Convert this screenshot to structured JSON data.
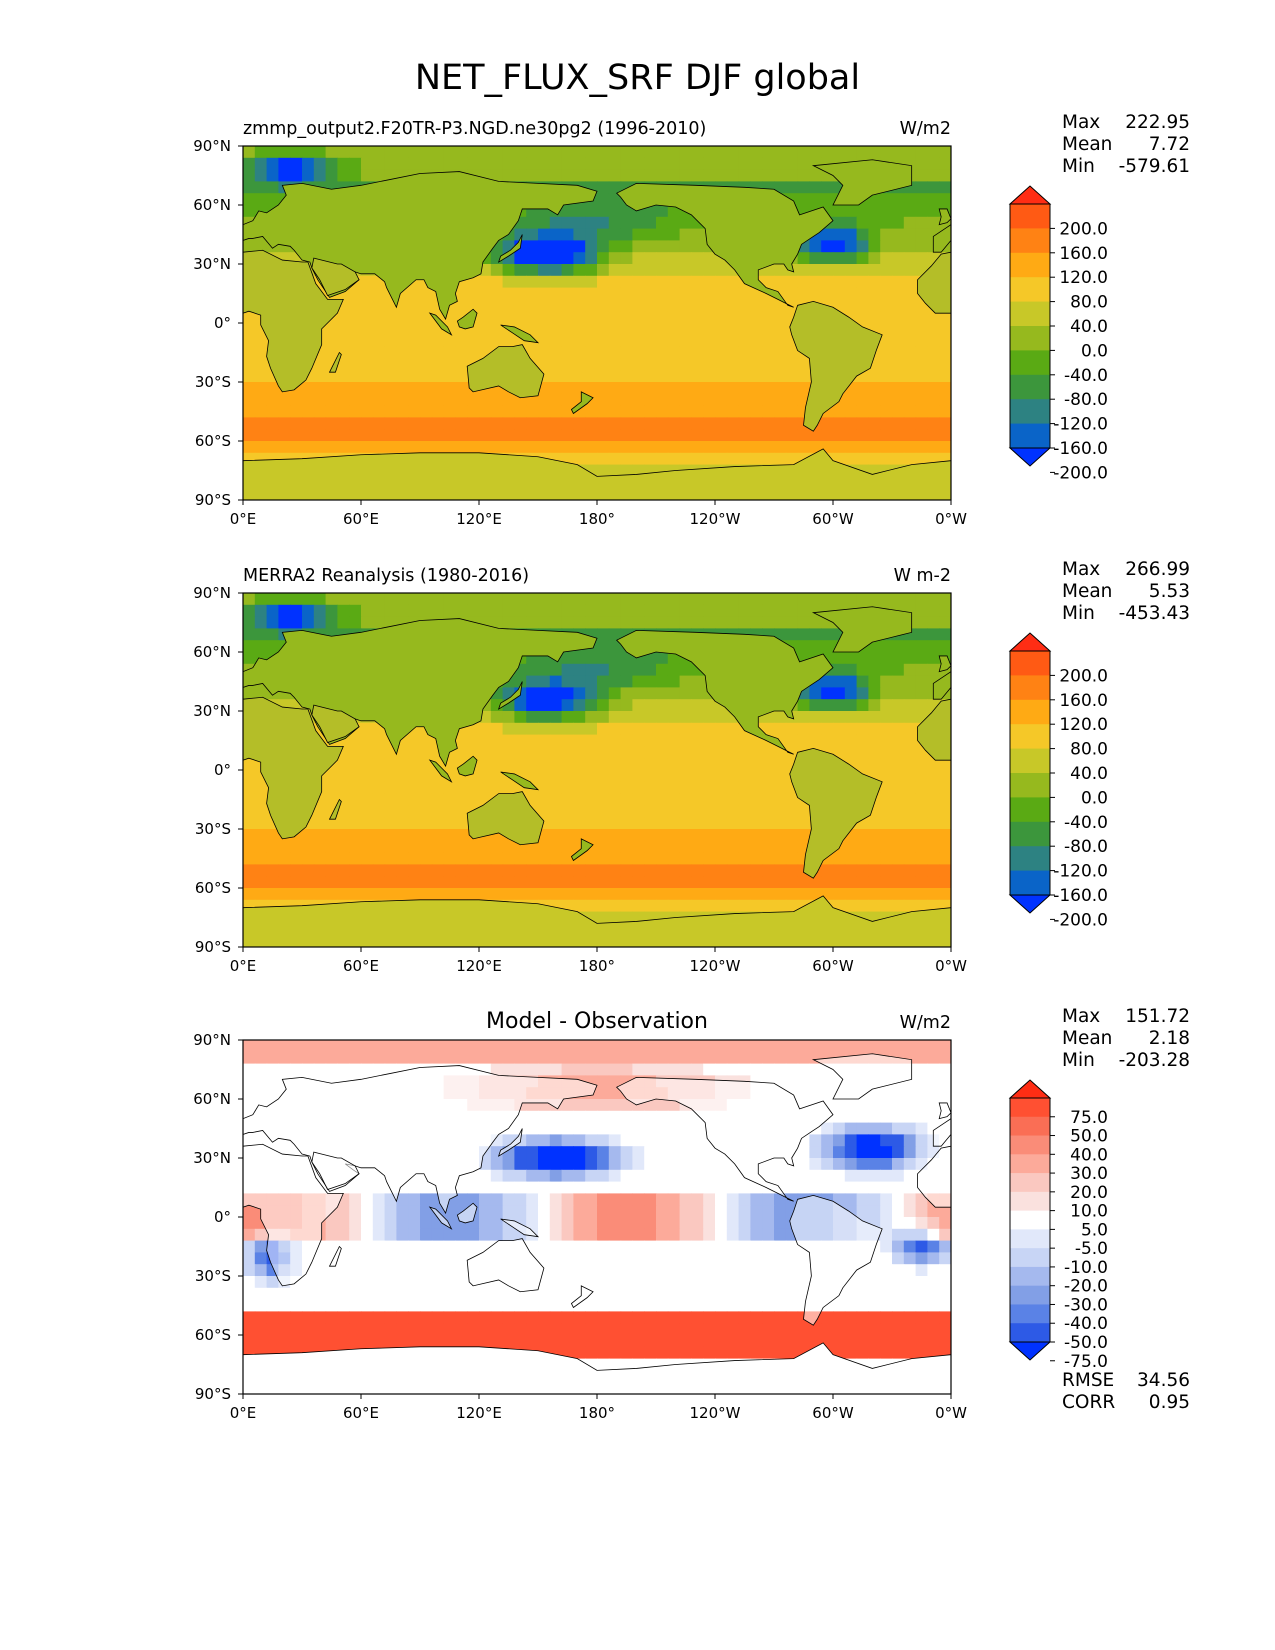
{
  "title": "NET_FLUX_SRF DJF global",
  "colors": {
    "model_levels": [
      "#0032ff",
      "#0a64c8",
      "#2d8282",
      "#3c963c",
      "#5aaa14",
      "#96b91e",
      "#c8c828",
      "#f5c828",
      "#ffaa14",
      "#ff8214",
      "#ff5a14",
      "#ff2d14"
    ],
    "diff_levels": [
      "#0032ff",
      "#2d5ae6",
      "#5a82e6",
      "#829fe6",
      "#a5b9ee",
      "#c8d5f5",
      "#e1e8fa",
      "#ffffff",
      "#fae1de",
      "#fac8c0",
      "#fcaa9a",
      "#fa8c78",
      "#fa6e55",
      "#ff5032",
      "#ff2d14"
    ]
  },
  "panels": [
    {
      "id": "test",
      "left_title": "zmmp_output2.F20TR-P3.NGD.ne30pg2 (1996-2010)",
      "center_title": "",
      "units": "W/m2",
      "stats": [
        {
          "label": "Max",
          "value": "222.95"
        },
        {
          "label": "Mean",
          "value": "7.72"
        },
        {
          "label": "Min",
          "value": "-579.61"
        }
      ],
      "colorbar_ticks": [
        "200.0",
        "160.0",
        "120.0",
        "80.0",
        "40.0",
        "0.0",
        "-40.0",
        "-80.0",
        "-120.0",
        "-160.0",
        "-200.0"
      ],
      "extra_stats": []
    },
    {
      "id": "reference",
      "left_title": "MERRA2 Reanalysis (1980-2016)",
      "center_title": "",
      "units": "W m-2",
      "stats": [
        {
          "label": "Max",
          "value": "266.99"
        },
        {
          "label": "Mean",
          "value": "5.53"
        },
        {
          "label": "Min",
          "value": "-453.43"
        }
      ],
      "colorbar_ticks": [
        "200.0",
        "160.0",
        "120.0",
        "80.0",
        "40.0",
        "0.0",
        "-40.0",
        "-80.0",
        "-120.0",
        "-160.0",
        "-200.0"
      ],
      "extra_stats": []
    },
    {
      "id": "diff",
      "left_title": "",
      "center_title": "Model - Observation",
      "units": "W/m2",
      "stats": [
        {
          "label": "Max",
          "value": "151.72"
        },
        {
          "label": "Mean",
          "value": "2.18"
        },
        {
          "label": "Min",
          "value": "-203.28"
        }
      ],
      "colorbar_ticks": [
        "75.0",
        "50.0",
        "40.0",
        "30.0",
        "20.0",
        "10.0",
        "5.0",
        "-5.0",
        "-10.0",
        "-20.0",
        "-30.0",
        "-40.0",
        "-50.0",
        "-75.0"
      ],
      "extra_stats": [
        {
          "label": "RMSE",
          "value": "34.56"
        },
        {
          "label": "CORR",
          "value": "0.95"
        }
      ]
    }
  ],
  "lat_ticks": [
    "90°N",
    "60°N",
    "30°N",
    "0°",
    "30°S",
    "60°S",
    "90°S"
  ],
  "lon_ticks": [
    "0°E",
    "60°E",
    "120°E",
    "180°",
    "120°W",
    "60°W",
    "0°W"
  ]
}
